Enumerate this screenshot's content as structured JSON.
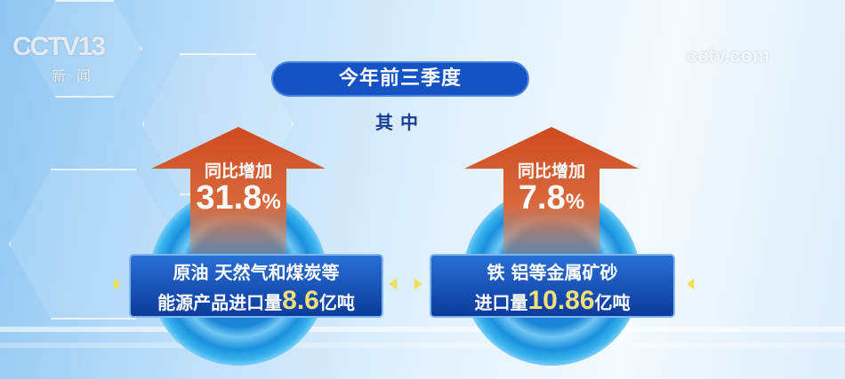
{
  "logos": {
    "channel": "CCTV13",
    "channel_sub": "新闻",
    "site": "cctv.com"
  },
  "header": {
    "title": "今年前三季度",
    "subtitle": "其中"
  },
  "items": [
    {
      "label": "同比增加",
      "percent": "31.8",
      "unit_pct": "%",
      "line1": "原油 天然气和煤炭等",
      "line2_prefix": "能源产品进口量",
      "value": "8.6",
      "value_unit": "亿吨"
    },
    {
      "label": "同比增加",
      "percent": "7.8",
      "unit_pct": "%",
      "line1": "铁 铝等金属矿砂",
      "line2_prefix": "进口量",
      "value": "10.86",
      "value_unit": "亿吨"
    }
  ],
  "colors": {
    "title_bg": "#1552c4",
    "arrow": "#d2502a",
    "highlight": "#f3df7a",
    "box": "#0b3b9c"
  }
}
